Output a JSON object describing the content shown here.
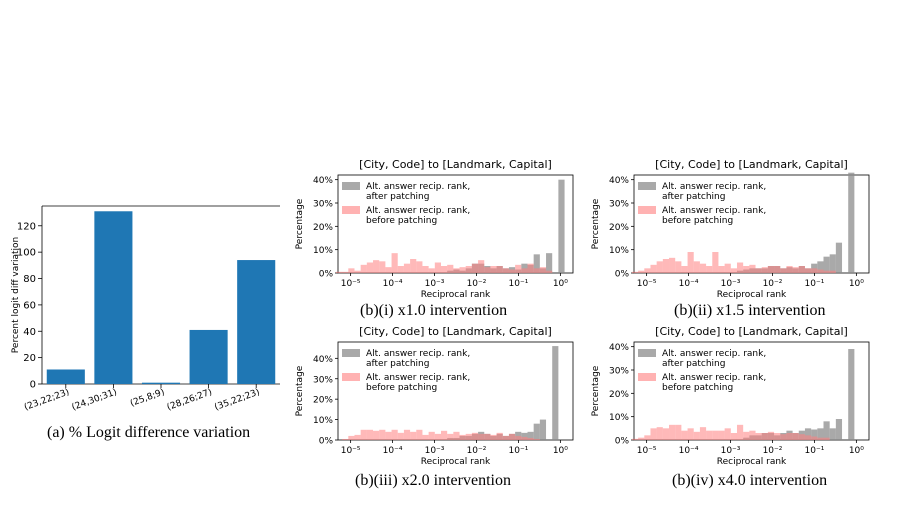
{
  "colors": {
    "bar": "#1f77b4",
    "after": "#8c8c8c",
    "before": "#ff7f7f"
  },
  "chart_data": [
    {
      "type": "bar",
      "categories": [
        "(23,22;23)",
        "(24,30;31)",
        "(25,8;9)",
        "(28,26;27)",
        "(35,22;23)"
      ],
      "values": [
        11,
        131,
        1,
        41,
        94
      ],
      "title": "",
      "xlabel": "",
      "ylabel": "Percent logit diff variation",
      "ylim": [
        0,
        135
      ],
      "yticks": [
        0,
        20,
        40,
        60,
        80,
        100,
        120
      ],
      "caption": "(a) % Logit difference variation"
    },
    {
      "type": "bar",
      "title": "[City, Code] to [Landmark, Capital]",
      "xlabel": "Reciprocal rank",
      "ylabel": "Percentage",
      "x_scale": "log",
      "xlim": [
        5e-06,
        2
      ],
      "ylim": [
        0,
        0.42
      ],
      "yticks": [
        "0%",
        "10%",
        "20%",
        "30%",
        "40%"
      ],
      "xticks": [
        "10⁻⁵",
        "10⁻⁴",
        "10⁻³",
        "10⁻²",
        "10⁻¹",
        "10⁰"
      ],
      "legend": [
        "Alt. answer recip. rank,",
        "after patching",
        "Alt. answer recip. rank,",
        "before patching"
      ],
      "legend_position": "upper-left",
      "series": [
        {
          "name": "Alt. answer recip. rank, after patching",
          "values": [
            0,
            0,
            0,
            0,
            0,
            0,
            0,
            0,
            0,
            0,
            0,
            0,
            0,
            0,
            0,
            0,
            0,
            0,
            0.01,
            0.015,
            0.01,
            0.02,
            0.04,
            0.04,
            0.03,
            0.02,
            0.03,
            0.02,
            0.025,
            0.015,
            0.04,
            0.035,
            0.08,
            0.02,
            0.085,
            0,
            0.4
          ]
        },
        {
          "name": "Alt. answer recip. rank, before patching",
          "values": [
            0.005,
            0.005,
            0.02,
            0.01,
            0.035,
            0.045,
            0.055,
            0.05,
            0.025,
            0.085,
            0.03,
            0.04,
            0.06,
            0.05,
            0.03,
            0.02,
            0.045,
            0.03,
            0.035,
            0.02,
            0.025,
            0.03,
            0.04,
            0.055,
            0.025,
            0.03,
            0.03,
            0.02,
            0.015,
            0.035,
            0.02,
            0.04,
            0.02,
            0.025,
            0.01,
            0,
            0
          ]
        }
      ],
      "caption": "(b)(i) x1.0 intervention"
    },
    {
      "type": "bar",
      "title": "[City, Code] to [Landmark, Capital]",
      "xlabel": "Reciprocal rank",
      "ylabel": "Percentage",
      "x_scale": "log",
      "xlim": [
        5e-06,
        2
      ],
      "ylim": [
        0,
        0.42
      ],
      "yticks": [
        "0%",
        "10%",
        "20%",
        "30%",
        "40%"
      ],
      "xticks": [
        "10⁻⁵",
        "10⁻⁴",
        "10⁻³",
        "10⁻²",
        "10⁻¹",
        "10⁰"
      ],
      "legend": [
        "Alt. answer recip. rank,",
        "after patching",
        "Alt. answer recip. rank,",
        "before patching"
      ],
      "legend_position": "upper-left",
      "series": [
        {
          "name": "Alt. answer recip. rank, after patching",
          "values": [
            0,
            0,
            0,
            0,
            0,
            0,
            0,
            0,
            0,
            0,
            0,
            0,
            0,
            0,
            0,
            0,
            0,
            0.01,
            0.015,
            0.02,
            0.02,
            0.02,
            0.03,
            0.03,
            0.02,
            0.025,
            0.02,
            0.03,
            0.02,
            0.04,
            0.05,
            0.07,
            0.08,
            0.13,
            0,
            0.43,
            0
          ]
        },
        {
          "name": "Alt. answer recip. rank, before patching",
          "values": [
            0.005,
            0.01,
            0.02,
            0.035,
            0.05,
            0.06,
            0.065,
            0.05,
            0.03,
            0.09,
            0.05,
            0.04,
            0.03,
            0.09,
            0.03,
            0.04,
            0.02,
            0.045,
            0.03,
            0.035,
            0.02,
            0.025,
            0.03,
            0.03,
            0.02,
            0.03,
            0.025,
            0.03,
            0.02,
            0.02,
            0.015,
            0.01,
            0.01,
            0,
            0,
            0,
            0
          ]
        }
      ],
      "caption": "(b)(ii) x1.5 intervention"
    },
    {
      "type": "bar",
      "title": "[City, Code] to [Landmark, Capital]",
      "xlabel": "Reciprocal rank",
      "ylabel": "Percentage",
      "x_scale": "log",
      "xlim": [
        5e-06,
        2
      ],
      "ylim": [
        0,
        0.48
      ],
      "yticks": [
        "0%",
        "10%",
        "20%",
        "30%",
        "40%"
      ],
      "xticks": [
        "10⁻⁵",
        "10⁻⁴",
        "10⁻³",
        "10⁻²",
        "10⁻¹",
        "10⁰"
      ],
      "legend": [
        "Alt. answer recip. rank,",
        "after patching",
        "Alt. answer recip. rank,",
        "before patching"
      ],
      "legend_position": "upper-left",
      "series": [
        {
          "name": "Alt. answer recip. rank, after patching",
          "values": [
            0,
            0,
            0,
            0,
            0,
            0,
            0,
            0,
            0,
            0,
            0,
            0,
            0,
            0,
            0,
            0,
            0,
            0,
            0.01,
            0.01,
            0.02,
            0.02,
            0.03,
            0.04,
            0.03,
            0.02,
            0.03,
            0.02,
            0.03,
            0.04,
            0.035,
            0.04,
            0.08,
            0.1,
            0,
            0.46,
            0
          ]
        },
        {
          "name": "Alt. answer recip. rank, before patching",
          "values": [
            0,
            0.005,
            0.02,
            0.025,
            0.05,
            0.05,
            0.045,
            0.05,
            0.04,
            0.05,
            0.035,
            0.05,
            0.04,
            0.05,
            0.025,
            0.04,
            0.03,
            0.045,
            0.03,
            0.04,
            0.025,
            0.03,
            0.035,
            0.03,
            0.03,
            0.025,
            0.035,
            0.02,
            0.03,
            0.02,
            0.015,
            0.01,
            0.005,
            0,
            0,
            0,
            0
          ]
        }
      ],
      "caption": "(b)(iii) x2.0 intervention"
    },
    {
      "type": "bar",
      "title": "[City, Code] to [Landmark, Capital]",
      "xlabel": "Reciprocal rank",
      "ylabel": "Percentage",
      "x_scale": "log",
      "xlim": [
        5e-06,
        2
      ],
      "ylim": [
        0,
        0.42
      ],
      "yticks": [
        "0%",
        "10%",
        "20%",
        "30%",
        "40%"
      ],
      "xticks": [
        "10⁻⁵",
        "10⁻⁴",
        "10⁻³",
        "10⁻²",
        "10⁻¹",
        "10⁰"
      ],
      "legend": [
        "Alt. answer recip. rank,",
        "after patching",
        "Alt. answer recip. rank,",
        "before patching"
      ],
      "legend_position": "upper-left",
      "series": [
        {
          "name": "Alt. answer recip. rank, after patching",
          "values": [
            0,
            0,
            0,
            0,
            0,
            0,
            0,
            0,
            0,
            0,
            0,
            0,
            0,
            0,
            0,
            0,
            0,
            0,
            0.01,
            0.02,
            0.02,
            0.03,
            0.03,
            0.02,
            0.03,
            0.04,
            0.03,
            0.04,
            0.05,
            0.045,
            0.05,
            0.08,
            0.05,
            0.09,
            0,
            0.39,
            0
          ]
        },
        {
          "name": "Alt. answer recip. rank, before patching",
          "values": [
            0.005,
            0.01,
            0.02,
            0.05,
            0.055,
            0.05,
            0.065,
            0.065,
            0.04,
            0.05,
            0.035,
            0.055,
            0.04,
            0.04,
            0.04,
            0.05,
            0.03,
            0.065,
            0.035,
            0.04,
            0.03,
            0.03,
            0.035,
            0.03,
            0.025,
            0.03,
            0.03,
            0.025,
            0.02,
            0.015,
            0.01,
            0.01,
            0,
            0,
            0,
            0,
            0
          ]
        }
      ],
      "caption": "(b)(iv) x4.0 intervention"
    }
  ]
}
